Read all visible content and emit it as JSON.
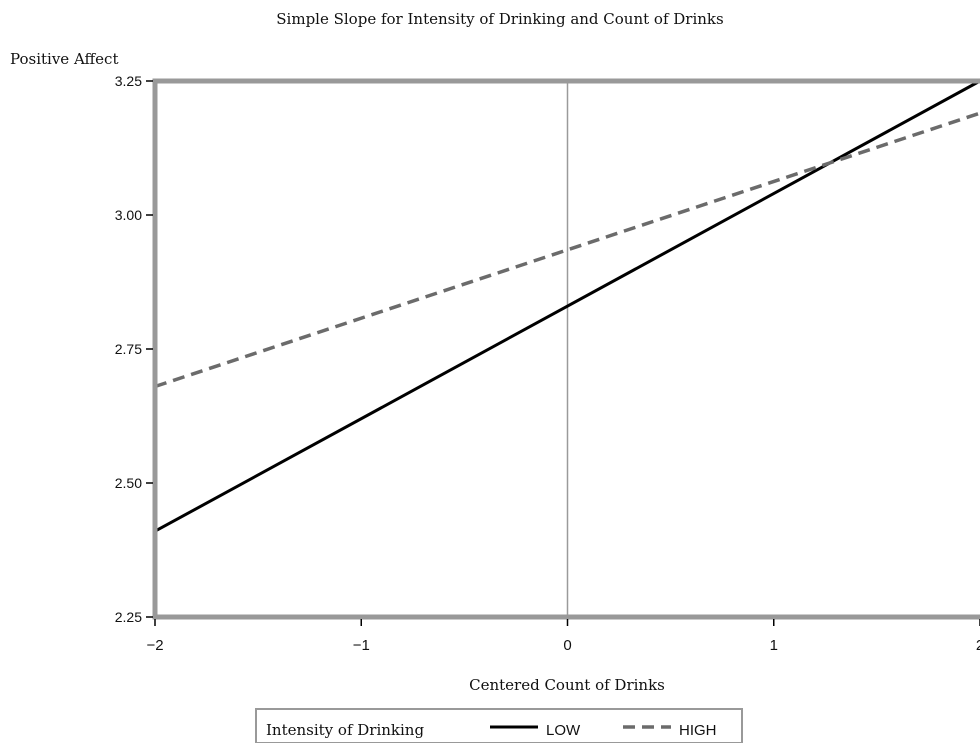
{
  "chart_data": {
    "type": "line",
    "title": "Simple Slope for Intensity of Drinking and Count of Drinks",
    "ylabel": "Positive Affect",
    "xlabel": "Centered Count of Drinks",
    "xlim": [
      -2,
      2
    ],
    "ylim": [
      2.25,
      3.25
    ],
    "x_ticks": [
      -2,
      -1,
      0,
      1,
      2
    ],
    "x_tick_labels": [
      "−2",
      "−1",
      "0",
      "1",
      "2"
    ],
    "y_ticks": [
      2.25,
      2.5,
      2.75,
      3.0,
      3.25
    ],
    "y_tick_labels": [
      "2.25",
      "2.50",
      "2.75",
      "3.00",
      "3.25"
    ],
    "reference_line_x": 0,
    "grid": false,
    "legend": {
      "title": "Intensity of Drinking",
      "position": "bottom"
    },
    "series": [
      {
        "name": "LOW",
        "x": [
          -2,
          2
        ],
        "y": [
          2.41,
          3.25
        ],
        "color": "#000000",
        "line_style": "solid"
      },
      {
        "name": "HIGH",
        "x": [
          -2,
          2
        ],
        "y": [
          2.68,
          3.19
        ],
        "color": "#6b6b6b",
        "line_style": "dashed"
      }
    ],
    "colors": {
      "frame": "#999999",
      "reference_line": "#9a9a9a"
    }
  }
}
